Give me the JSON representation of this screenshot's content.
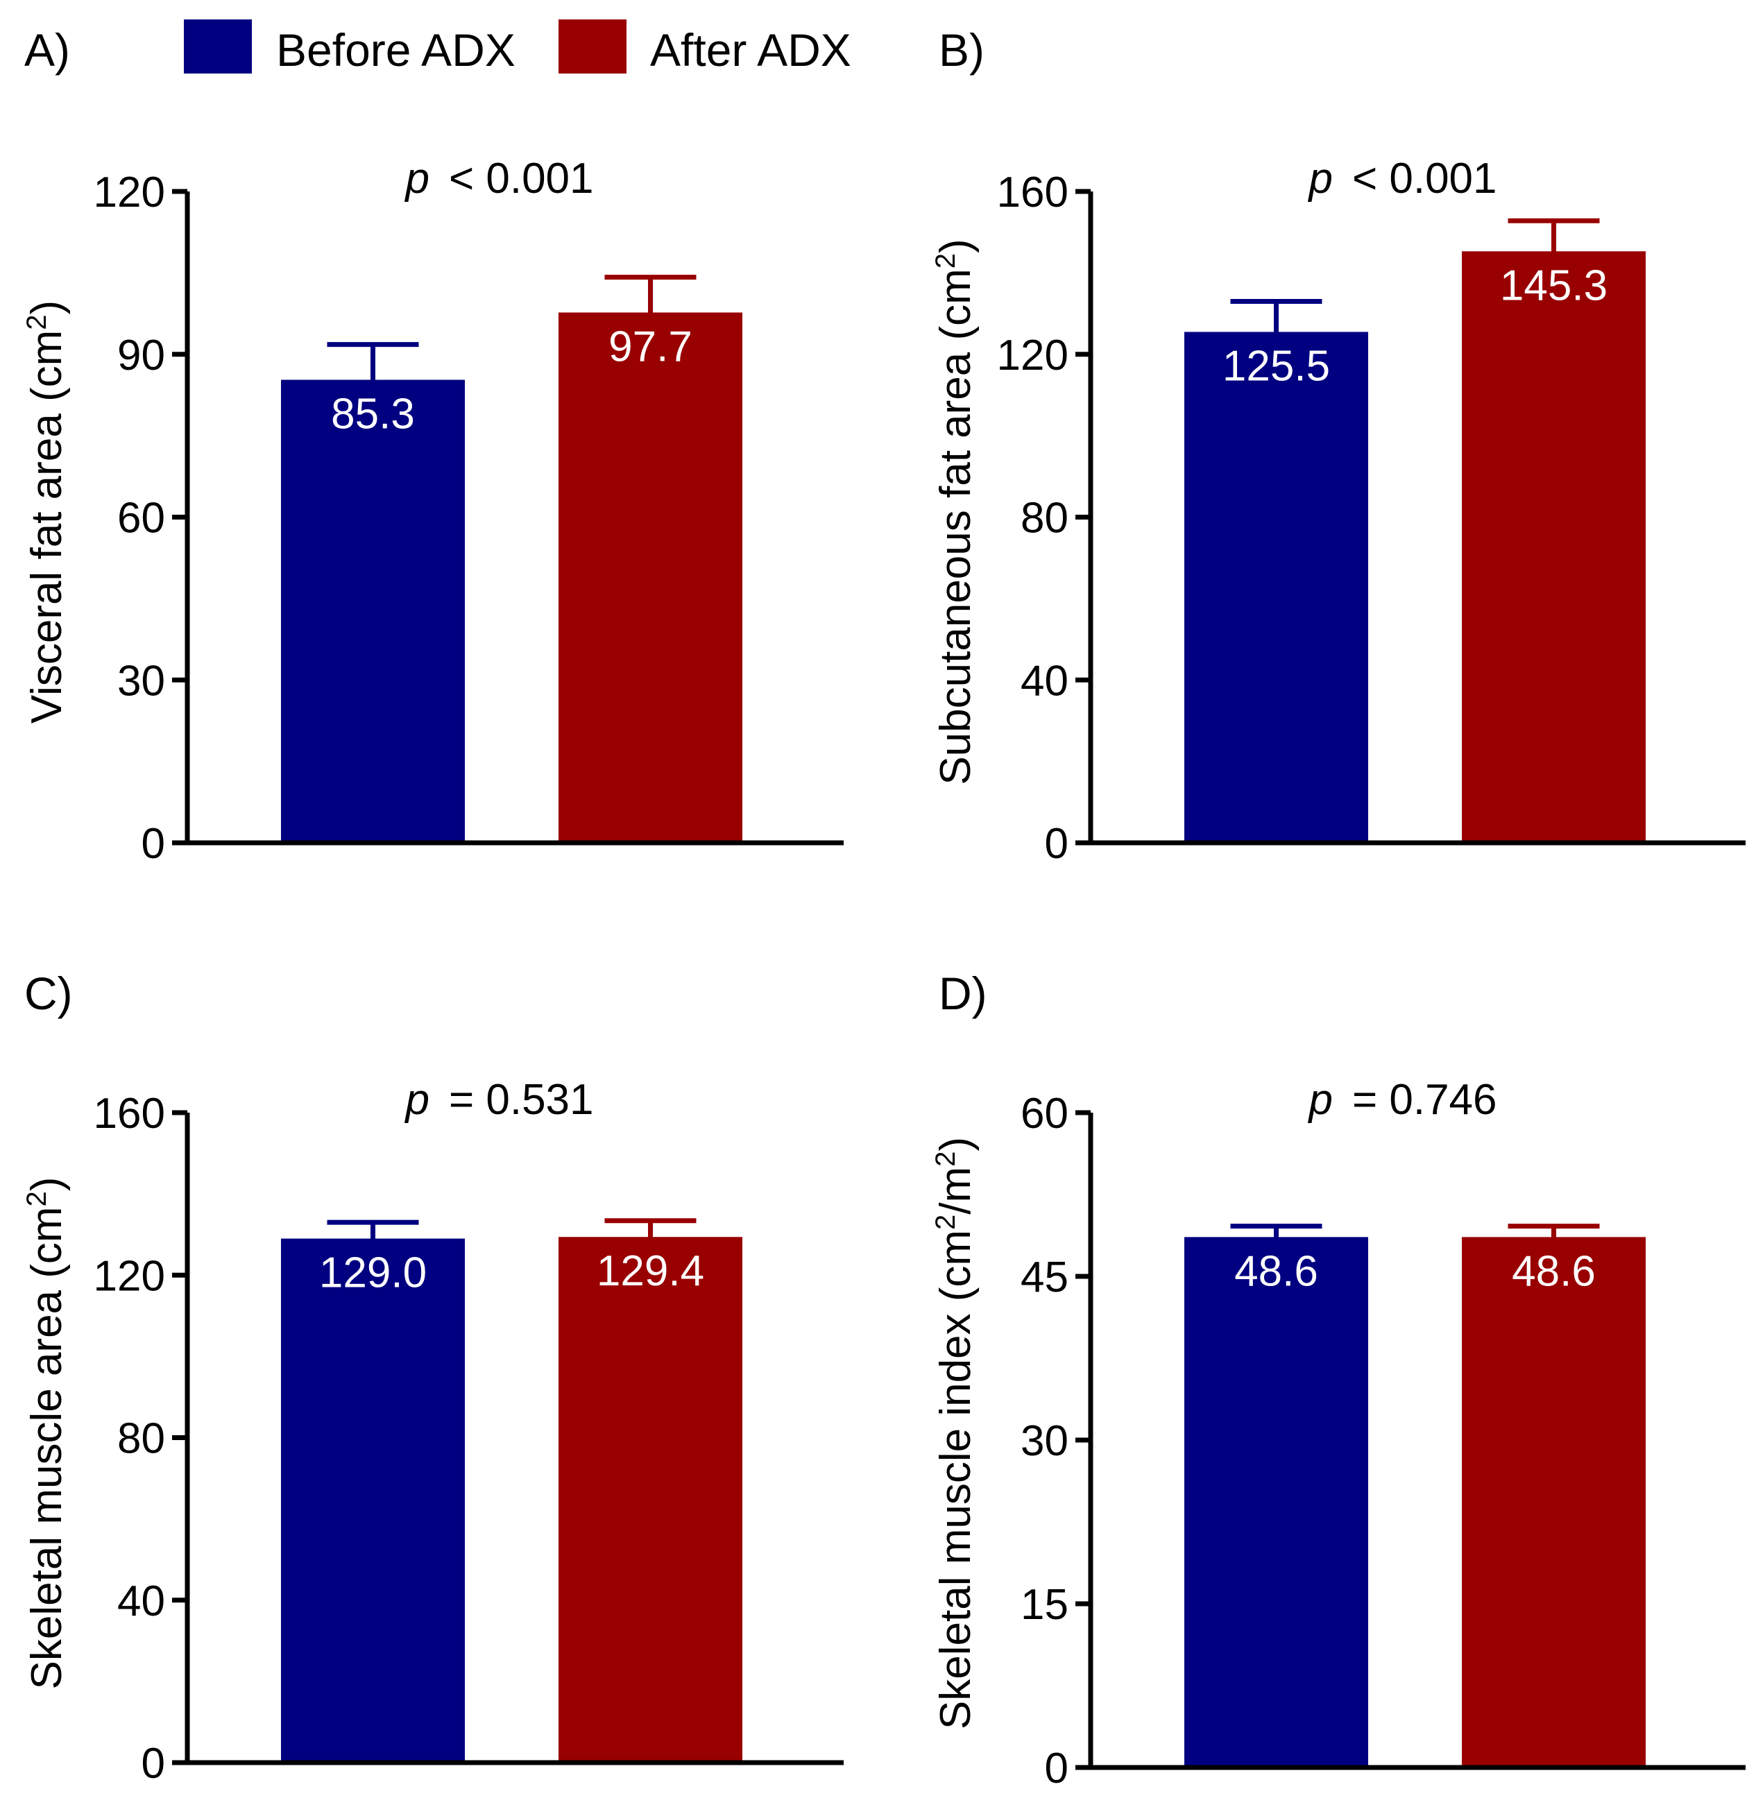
{
  "legend": {
    "items": [
      {
        "label": "Before ADX",
        "color": "#000080"
      },
      {
        "label": "After ADX",
        "color": "#990000"
      }
    ]
  },
  "chart_data": [
    {
      "panel": "A)",
      "type": "bar",
      "ylabel_main": "Visceral fat area (cm",
      "ylabel_sup": "2",
      "ylabel_tail": ")",
      "ylim": [
        0,
        120
      ],
      "yticks": [
        0,
        30,
        60,
        90,
        120
      ],
      "p_symbol": "p",
      "p_rest": "< 0.001",
      "bars": [
        {
          "series": "Before ADX",
          "value": 85.3,
          "label": "85.3",
          "error": 6.5,
          "color": "#000080"
        },
        {
          "series": "After ADX",
          "value": 97.7,
          "label": "97.7",
          "error": 6.5,
          "color": "#990000"
        }
      ]
    },
    {
      "panel": "B)",
      "type": "bar",
      "ylabel_main": "Subcutaneous fat area (cm",
      "ylabel_sup": "2",
      "ylabel_tail": ")",
      "ylim": [
        0,
        160
      ],
      "yticks": [
        0,
        40,
        80,
        120,
        160
      ],
      "p_symbol": "p",
      "p_rest": "< 0.001",
      "bars": [
        {
          "series": "Before ADX",
          "value": 125.5,
          "label": "125.5",
          "error": 7.5,
          "color": "#000080"
        },
        {
          "series": "After ADX",
          "value": 145.3,
          "label": "145.3",
          "error": 7.5,
          "color": "#990000"
        }
      ]
    },
    {
      "panel": "C)",
      "type": "bar",
      "ylabel_main": "Skeletal muscle area (cm",
      "ylabel_sup": "2",
      "ylabel_tail": ")",
      "ylim": [
        0,
        160
      ],
      "yticks": [
        0,
        40,
        80,
        120,
        160
      ],
      "p_symbol": "p",
      "p_rest": "= 0.531",
      "bars": [
        {
          "series": "Before ADX",
          "value": 129.0,
          "label": "129.0",
          "error": 4.0,
          "color": "#000080"
        },
        {
          "series": "After ADX",
          "value": 129.4,
          "label": "129.4",
          "error": 4.0,
          "color": "#990000"
        }
      ]
    },
    {
      "panel": "D)",
      "type": "bar",
      "ylabel_main": "Skeletal muscle index (cm",
      "ylabel_sup": "2",
      "ylabel_mid": "/m",
      "ylabel_sup2": "2",
      "ylabel_tail": ")",
      "ylim": [
        0,
        60
      ],
      "yticks": [
        0,
        15,
        30,
        45,
        60
      ],
      "p_symbol": "p",
      "p_rest": "= 0.746",
      "bars": [
        {
          "series": "Before ADX",
          "value": 48.6,
          "label": "48.6",
          "error": 1.0,
          "color": "#000080"
        },
        {
          "series": "After ADX",
          "value": 48.6,
          "label": "48.6",
          "error": 1.0,
          "color": "#990000"
        }
      ]
    }
  ]
}
